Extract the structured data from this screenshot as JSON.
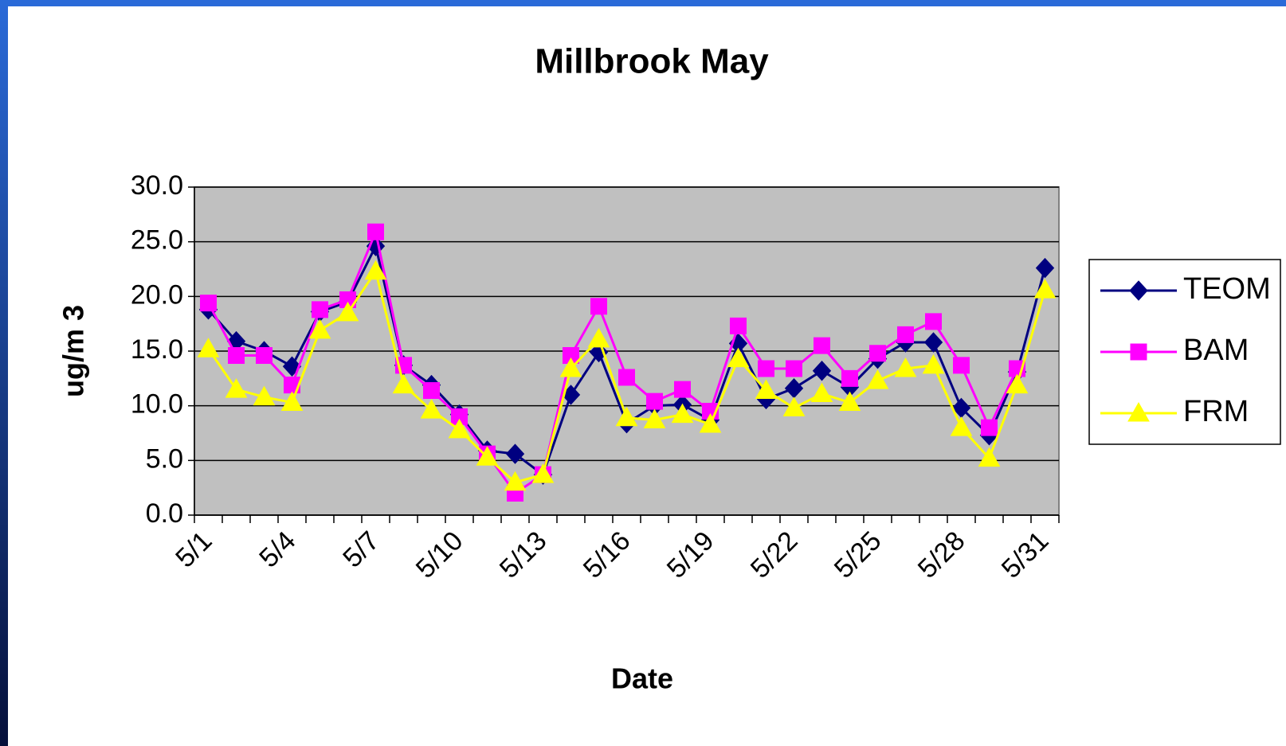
{
  "chart_data": {
    "type": "line",
    "title": "Millbrook May",
    "x_label": "Date",
    "y_label": "ug/m 3",
    "categories": [
      "5/1",
      null,
      null,
      "5/4",
      null,
      null,
      "5/7",
      null,
      null,
      "5/10",
      null,
      null,
      "5/13",
      null,
      null,
      "5/16",
      null,
      null,
      "5/19",
      null,
      null,
      "5/22",
      null,
      null,
      "5/25",
      null,
      null,
      "5/28",
      null,
      null,
      "5/31"
    ],
    "series": [
      {
        "name": "TEOM",
        "color": "#000080",
        "marker": "diamond",
        "values": [
          18.8,
          15.9,
          15.0,
          13.6,
          18.6,
          19.5,
          24.6,
          13.7,
          11.9,
          9.2,
          5.9,
          5.6,
          3.7,
          11.0,
          14.9,
          8.4,
          10.0,
          10.1,
          8.7,
          15.7,
          10.6,
          11.6,
          13.2,
          11.7,
          14.3,
          15.8,
          15.8,
          9.8,
          7.3,
          13.1,
          22.6
        ]
      },
      {
        "name": "BAM",
        "color": "#ff00ff",
        "marker": "square",
        "values": [
          19.4,
          14.6,
          14.6,
          11.9,
          18.8,
          19.7,
          25.9,
          13.7,
          11.4,
          9.0,
          5.6,
          2.0,
          3.7,
          14.6,
          19.1,
          12.6,
          10.4,
          11.5,
          9.5,
          17.3,
          13.4,
          13.4,
          15.5,
          12.5,
          14.8,
          16.5,
          17.7,
          13.7,
          8.0,
          13.4,
          null
        ]
      },
      {
        "name": "FRM",
        "color": "#ffff00",
        "marker": "triangle",
        "values": [
          15.2,
          11.5,
          10.8,
          10.3,
          16.9,
          18.5,
          22.3,
          11.9,
          9.6,
          7.8,
          5.3,
          3.0,
          3.7,
          13.4,
          16.1,
          8.9,
          8.7,
          9.2,
          8.3,
          14.3,
          11.4,
          9.8,
          11.1,
          10.3,
          12.3,
          13.4,
          13.7,
          8.0,
          5.2,
          11.9,
          20.6
        ]
      }
    ],
    "ylim": [
      0,
      30
    ],
    "yticks": [
      {
        "value": 0,
        "label": "0.0"
      },
      {
        "value": 5,
        "label": "5.0"
      },
      {
        "value": 10,
        "label": "10.0"
      },
      {
        "value": 15,
        "label": "15.0"
      },
      {
        "value": 20,
        "label": "20.0"
      },
      {
        "value": 25,
        "label": "25.0"
      },
      {
        "value": 30,
        "label": "30.0"
      }
    ],
    "grid": true,
    "plot_background": "#c0c0c0",
    "legend": "right"
  }
}
